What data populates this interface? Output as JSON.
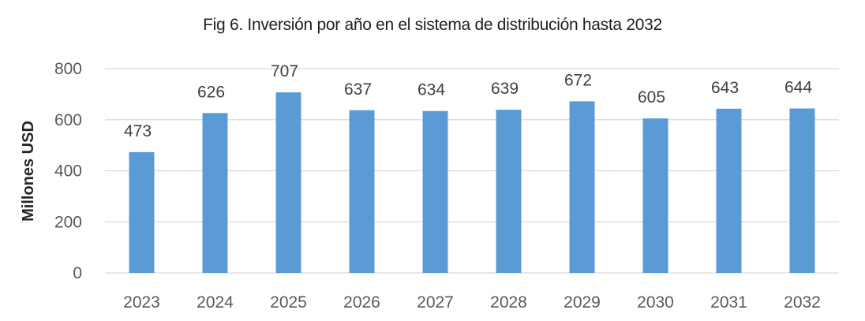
{
  "chart_data": {
    "type": "bar",
    "title": "Fig 6. Inversión por año en el sistema de distribución hasta 2032",
    "xlabel": "",
    "ylabel": "Millones USD",
    "categories": [
      "2023",
      "2024",
      "2025",
      "2026",
      "2027",
      "2028",
      "2029",
      "2030",
      "2031",
      "2032"
    ],
    "values": [
      473,
      626,
      707,
      637,
      634,
      639,
      672,
      605,
      643,
      644
    ],
    "ylim": [
      0,
      800
    ],
    "yticks": [
      "0",
      "200",
      "400",
      "600",
      "800"
    ],
    "grid": true,
    "data_labels": true,
    "bar_color": "#5b9bd5",
    "grid_color": "#d9d9d9"
  }
}
